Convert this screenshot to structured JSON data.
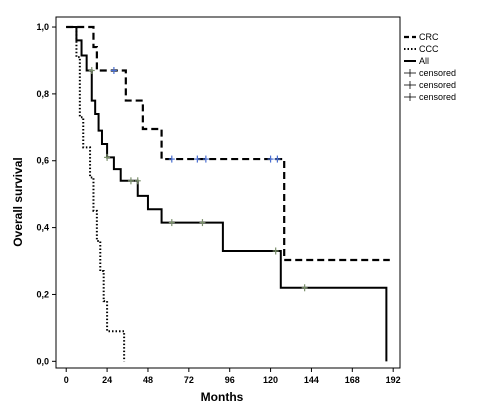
{
  "chart_data": {
    "type": "line",
    "step": true,
    "xlabel": "Months",
    "ylabel": "Overall survival",
    "xlim": [
      -6,
      196
    ],
    "ylim": [
      -0.02,
      1.03
    ],
    "x_ticks": [
      0,
      24,
      48,
      72,
      96,
      120,
      144,
      168,
      192
    ],
    "y_ticks": [
      0.0,
      0.2,
      0.4,
      0.6,
      0.8,
      1.0
    ],
    "y_tick_labels": [
      "0,0",
      "0,2",
      "0,4",
      "0,6",
      "0,8",
      "1,0"
    ],
    "grid": false,
    "legend_position": "right-top",
    "legend": [
      "CRC",
      "CCC",
      "All",
      "censored",
      "censored",
      "censored"
    ],
    "series": [
      {
        "name": "CRC",
        "style": "dashed",
        "x": [
          0,
          16,
          18,
          27,
          35,
          45,
          56,
          128,
          190
        ],
        "y": [
          1.0,
          0.94,
          0.87,
          0.87,
          0.78,
          0.695,
          0.605,
          0.303,
          0.303
        ],
        "censored_x": [
          28,
          62,
          77,
          82,
          120,
          124
        ],
        "censored_y": [
          0.87,
          0.605,
          0.605,
          0.605,
          0.605,
          0.605
        ]
      },
      {
        "name": "CCC",
        "style": "dotted",
        "x": [
          0,
          6,
          8,
          10,
          12,
          14,
          16,
          18,
          20,
          22,
          24,
          26,
          34
        ],
        "y": [
          1.0,
          0.91,
          0.73,
          0.64,
          0.64,
          0.55,
          0.45,
          0.36,
          0.27,
          0.18,
          0.09,
          0.09,
          0.0
        ]
      },
      {
        "name": "All",
        "style": "solid",
        "x": [
          0,
          6,
          9,
          12,
          15,
          17,
          19,
          21,
          24,
          28,
          32,
          42,
          48,
          56,
          92,
          126,
          188,
          188
        ],
        "y": [
          1.0,
          0.96,
          0.915,
          0.87,
          0.78,
          0.74,
          0.69,
          0.65,
          0.61,
          0.575,
          0.54,
          0.495,
          0.455,
          0.415,
          0.33,
          0.22,
          0.22,
          0.0
        ],
        "censored_x": [
          15,
          24,
          38,
          42,
          62,
          80,
          123,
          140
        ],
        "censored_y": [
          0.87,
          0.61,
          0.54,
          0.54,
          0.415,
          0.415,
          0.33,
          0.22
        ]
      }
    ]
  }
}
